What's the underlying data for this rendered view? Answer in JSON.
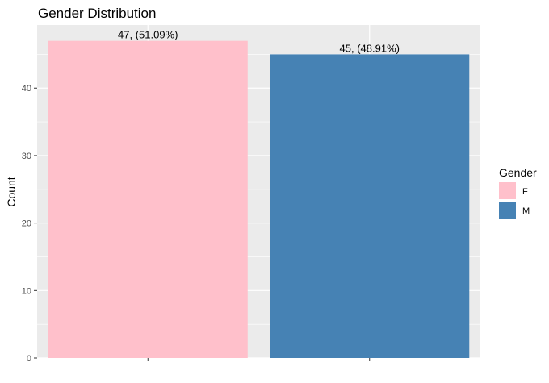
{
  "chart_data": {
    "type": "bar",
    "title": "Gender Distribution",
    "xlabel": "",
    "ylabel": "Count",
    "categories": [
      "F",
      "M"
    ],
    "x_tick_labels": [
      "",
      ""
    ],
    "values": [
      47,
      45
    ],
    "data_labels": [
      "47, (51.09%)",
      "45, (48.91%)"
    ],
    "colors": [
      "#ffc0cb",
      "#4682b4"
    ],
    "ylim": [
      0,
      49.35
    ],
    "yticks": [
      0,
      10,
      20,
      30,
      40
    ],
    "grid": true,
    "panel_background": "#ebebeb",
    "grid_color": "#ffffff",
    "legend": {
      "title": "Gender",
      "position": "right",
      "entries": [
        {
          "label": "F",
          "color": "#ffc0cb"
        },
        {
          "label": "M",
          "color": "#4682b4"
        }
      ]
    }
  }
}
